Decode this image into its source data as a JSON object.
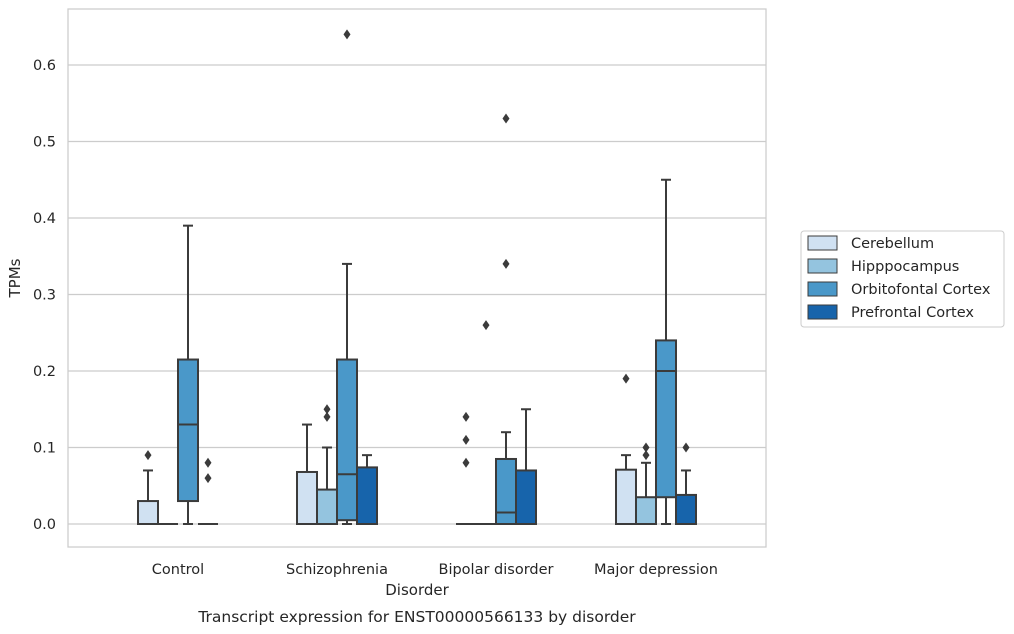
{
  "chart_data": {
    "type": "box",
    "title": "",
    "caption": "Transcript expression for ENST00000566133 by disorder",
    "xlabel": "Disorder",
    "ylabel": "TPMs",
    "ylim": [
      -0.032,
      0.675
    ],
    "yticks": [
      0.0,
      0.1,
      0.2,
      0.3,
      0.4,
      0.5,
      0.6
    ],
    "ytick_labels": [
      "0.0",
      "0.1",
      "0.2",
      "0.3",
      "0.4",
      "0.5",
      "0.6"
    ],
    "grid": "horizontal",
    "legend_position": "right",
    "categories": [
      "Control",
      "Schizophrenia",
      "Bipolar disorder",
      "Major depression"
    ],
    "series": [
      {
        "name": "Cerebellum",
        "color": "#d0e1f2",
        "boxes": [
          {
            "q1": 0.0,
            "median": 0.0,
            "q3": 0.03,
            "whisker_low": 0.0,
            "whisker_high": 0.07,
            "outliers": [
              0.09
            ]
          },
          {
            "q1": 0.0,
            "median": 0.0,
            "q3": 0.068,
            "whisker_low": 0.0,
            "whisker_high": 0.13,
            "outliers": []
          },
          {
            "q1": 0.0,
            "median": 0.0,
            "q3": 0.0,
            "whisker_low": 0.0,
            "whisker_high": 0.0,
            "outliers": [
              0.08,
              0.11,
              0.14
            ]
          },
          {
            "q1": 0.0,
            "median": 0.0,
            "q3": 0.071,
            "whisker_low": 0.0,
            "whisker_high": 0.09,
            "outliers": [
              0.19
            ]
          }
        ]
      },
      {
        "name": "Hipppocampus",
        "color": "#94c4df",
        "boxes": [
          {
            "q1": 0.0,
            "median": 0.0,
            "q3": 0.0,
            "whisker_low": 0.0,
            "whisker_high": 0.0,
            "outliers": []
          },
          {
            "q1": 0.0,
            "median": 0.0,
            "q3": 0.045,
            "whisker_low": 0.0,
            "whisker_high": 0.1,
            "outliers": [
              0.14,
              0.15
            ]
          },
          {
            "q1": 0.0,
            "median": 0.0,
            "q3": 0.0,
            "whisker_low": 0.0,
            "whisker_high": 0.0,
            "outliers": [
              0.26
            ]
          },
          {
            "q1": 0.0,
            "median": 0.0,
            "q3": 0.035,
            "whisker_low": 0.0,
            "whisker_high": 0.08,
            "outliers": [
              0.09,
              0.1
            ]
          }
        ]
      },
      {
        "name": "Orbitofontal Cortex",
        "color": "#4a98c9",
        "boxes": [
          {
            "q1": 0.03,
            "median": 0.13,
            "q3": 0.215,
            "whisker_low": 0.0,
            "whisker_high": 0.39,
            "outliers": []
          },
          {
            "q1": 0.005,
            "median": 0.065,
            "q3": 0.215,
            "whisker_low": 0.0,
            "whisker_high": 0.34,
            "outliers": [
              0.64
            ]
          },
          {
            "q1": 0.0,
            "median": 0.015,
            "q3": 0.085,
            "whisker_low": 0.0,
            "whisker_high": 0.12,
            "outliers": [
              0.34,
              0.53
            ]
          },
          {
            "q1": 0.035,
            "median": 0.2,
            "q3": 0.24,
            "whisker_low": 0.0,
            "whisker_high": 0.45,
            "outliers": []
          }
        ]
      },
      {
        "name": "Prefrontal Cortex",
        "color": "#1764ab",
        "boxes": [
          {
            "q1": 0.0,
            "median": 0.0,
            "q3": 0.0,
            "whisker_low": 0.0,
            "whisker_high": 0.0,
            "outliers": [
              0.06,
              0.08
            ]
          },
          {
            "q1": 0.0,
            "median": 0.0,
            "q3": 0.074,
            "whisker_low": 0.0,
            "whisker_high": 0.09,
            "outliers": []
          },
          {
            "q1": 0.0,
            "median": 0.0,
            "q3": 0.07,
            "whisker_low": 0.0,
            "whisker_high": 0.15,
            "outliers": []
          },
          {
            "q1": 0.0,
            "median": 0.0,
            "q3": 0.038,
            "whisker_low": 0.0,
            "whisker_high": 0.07,
            "outliers": [
              0.1
            ]
          }
        ]
      }
    ]
  }
}
